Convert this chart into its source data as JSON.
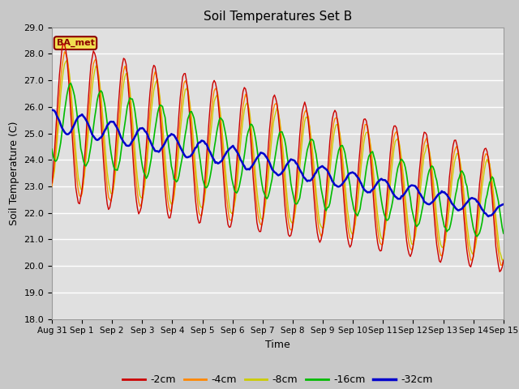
{
  "title": "Soil Temperatures Set B",
  "xlabel": "Time",
  "ylabel": "Soil Temperature (C)",
  "ylim": [
    18.0,
    29.0
  ],
  "yticks": [
    18.0,
    19.0,
    20.0,
    21.0,
    22.0,
    23.0,
    24.0,
    25.0,
    26.0,
    27.0,
    28.0,
    29.0
  ],
  "fig_bg_color": "#c8c8c8",
  "plot_bg_color": "#e0e0e0",
  "grid_color": "#ffffff",
  "label_box": "BA_met",
  "depths": [
    "-2cm",
    "-4cm",
    "-8cm",
    "-16cm",
    "-32cm"
  ],
  "colors": [
    "#cc0000",
    "#ff8800",
    "#cccc00",
    "#00bb00",
    "#0000cc"
  ],
  "linewidths": [
    1.0,
    1.0,
    1.0,
    1.2,
    1.8
  ],
  "n_points": 360,
  "x_tick_labels": [
    "Aug 31",
    "Sep 1",
    "Sep 2",
    "Sep 3",
    "Sep 4",
    "Sep 5",
    "Sep 6",
    "Sep 7",
    "Sep 8",
    "Sep 9",
    "Sep 10",
    "Sep 11",
    "Sep 12",
    "Sep 13",
    "Sep 14",
    "Sep 15"
  ],
  "x_tick_positions": [
    0,
    1,
    2,
    3,
    4,
    5,
    6,
    7,
    8,
    9,
    10,
    11,
    12,
    13,
    14,
    15
  ]
}
